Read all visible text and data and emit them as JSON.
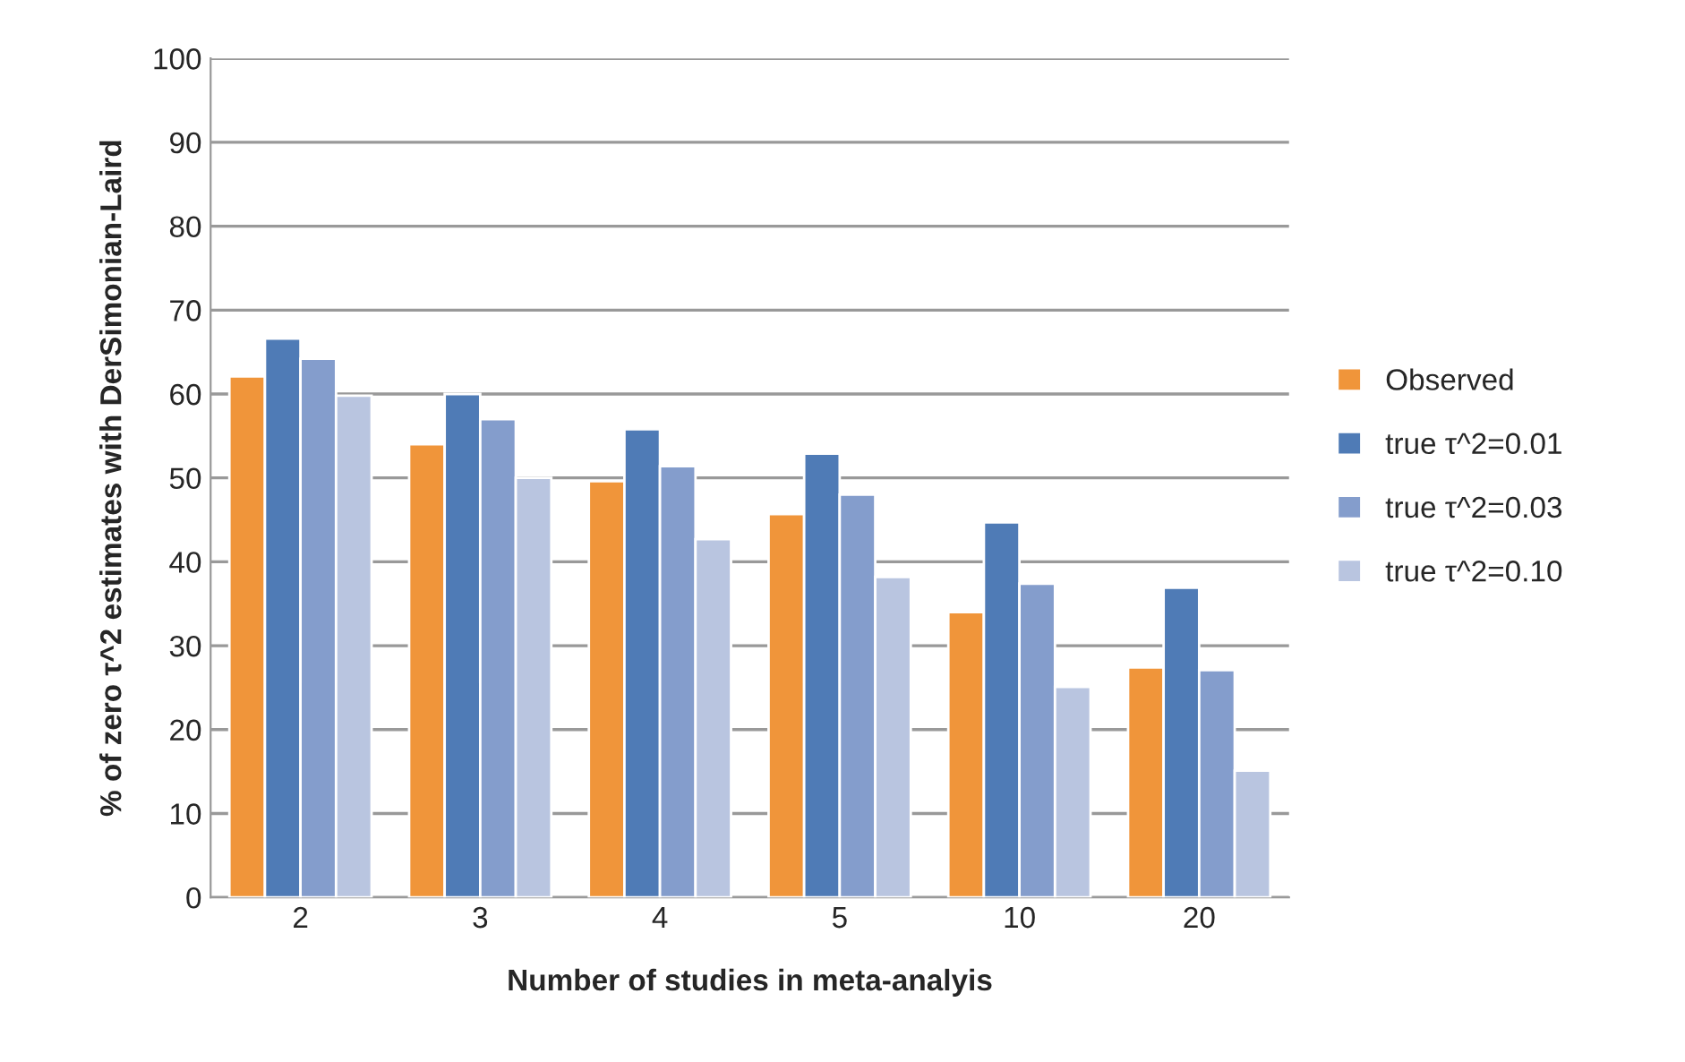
{
  "chart_data": {
    "type": "bar",
    "xlabel": "Number of studies in meta-analyis",
    "ylabel": "% of zero τ^2 estimates with DerSimonian-Laird",
    "categories": [
      "2",
      "3",
      "4",
      "5",
      "10",
      "20"
    ],
    "series": [
      {
        "name": "Observed",
        "color": "#f0953a",
        "values": [
          62.1,
          54.0,
          49.6,
          45.7,
          34.0,
          27.4
        ]
      },
      {
        "name": "true τ^2=0.01",
        "color": "#4f7bb6",
        "values": [
          66.6,
          60.0,
          55.8,
          52.9,
          44.7,
          36.9
        ]
      },
      {
        "name": "true τ^2=0.03",
        "color": "#849dcc",
        "values": [
          64.2,
          57.0,
          51.4,
          48.0,
          37.4,
          27.1
        ]
      },
      {
        "name": "true τ^2=0.10",
        "color": "#b9c5e0",
        "values": [
          59.8,
          50.0,
          42.7,
          38.2,
          25.1,
          15.1
        ]
      }
    ],
    "ylim": [
      0,
      100
    ],
    "yticks": [
      0,
      10,
      20,
      30,
      40,
      50,
      60,
      70,
      80,
      90,
      100
    ],
    "grid": "y",
    "legend": "right"
  }
}
